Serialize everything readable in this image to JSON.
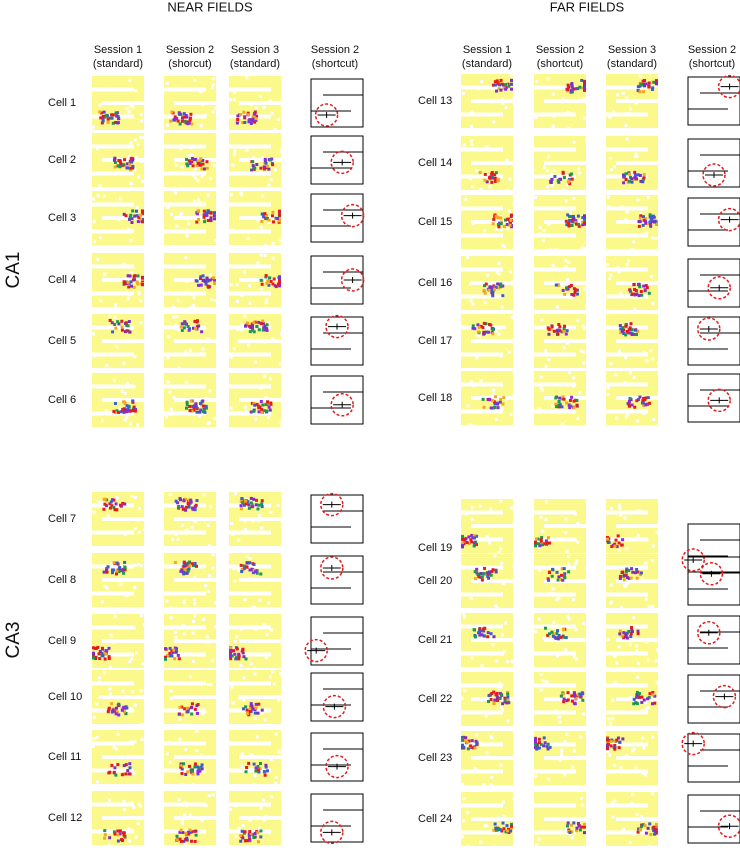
{
  "regions": [
    "CA1",
    "CA3"
  ],
  "panels": [
    {
      "title": "NEAR FIELDS",
      "columns": [
        [
          "Session 1",
          "(standard)"
        ],
        [
          "Session 2",
          "(shorcut)"
        ],
        [
          "Session 3",
          "(standard)"
        ],
        [
          "Session 2",
          "(shortcut)"
        ]
      ],
      "cells": [
        "Cell 1",
        "Cell 2",
        "Cell 3",
        "Cell 4",
        "Cell 5",
        "Cell 6",
        "Cell 7",
        "Cell 8",
        "Cell 9",
        "Cell 10",
        "Cell 11",
        "Cell 12"
      ]
    },
    {
      "title": "FAR FIELDS",
      "columns": [
        [
          "Session 1",
          "(standard)"
        ],
        [
          "Session 2",
          "(shortcut)"
        ],
        [
          "Session 3",
          "(standard)"
        ],
        [
          "Session 2",
          "(shortcut)"
        ]
      ],
      "cells": [
        "Cell 13",
        "Cell 14",
        "Cell 15",
        "Cell 16",
        "Cell 17",
        "Cell 18",
        "Cell 19",
        "Cell 20",
        "Cell 21",
        "Cell 22",
        "Cell 23",
        "Cell 24"
      ]
    }
  ]
}
